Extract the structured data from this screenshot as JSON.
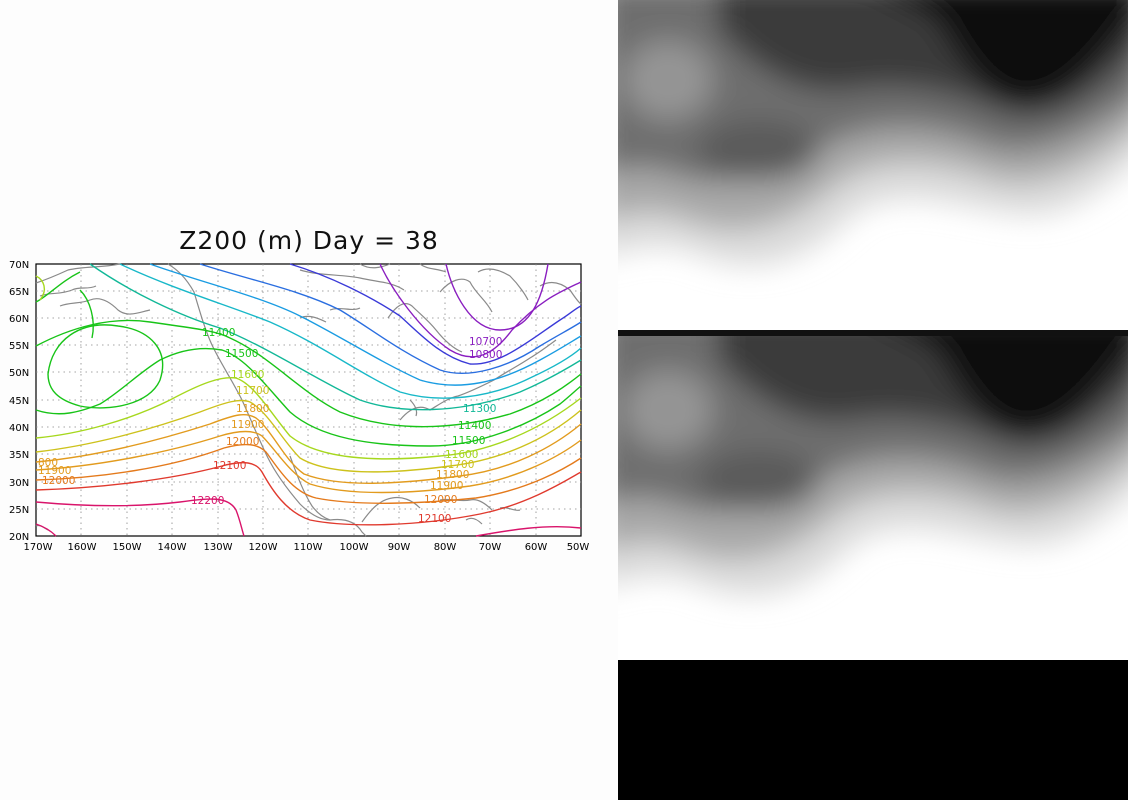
{
  "title": "Z200 (m) Day = 38",
  "map": {
    "lat_labels": [
      "70N",
      "65N",
      "60N",
      "55N",
      "50N",
      "45N",
      "40N",
      "35N",
      "30N",
      "25N",
      "20N"
    ],
    "lon_labels": [
      "170W",
      "160W",
      "150W",
      "140W",
      "130W",
      "120W",
      "110W",
      "100W",
      "90W",
      "80W",
      "70W",
      "60W",
      "50W"
    ],
    "contour_levels": [
      10700,
      10800,
      10900,
      11000,
      11100,
      11200,
      11300,
      11400,
      11500,
      11600,
      11700,
      11800,
      11900,
      12000,
      12100,
      12200
    ],
    "contour_labels": [
      {
        "text": "11400",
        "color": "#18c418"
      },
      {
        "text": "11500",
        "color": "#18c418"
      },
      {
        "text": "11600",
        "color": "#a6d81e"
      },
      {
        "text": "11700",
        "color": "#cdc21c"
      },
      {
        "text": "11800",
        "color": "#e29b1e"
      },
      {
        "text": "11900",
        "color": "#e29b1e"
      },
      {
        "text": "12000",
        "color": "#e47a1c"
      },
      {
        "text": "12100",
        "color": "#e03a2e"
      },
      {
        "text": "12200",
        "color": "#d9146b"
      },
      {
        "text": "10700",
        "color": "#8a1ec0"
      },
      {
        "text": "10800",
        "color": "#8a1ec0"
      },
      {
        "text": "11300",
        "color": "#12b898"
      },
      {
        "text": "11400",
        "color": "#18c418"
      },
      {
        "text": "11500",
        "color": "#18c418"
      },
      {
        "text": "11600",
        "color": "#a6d81e"
      },
      {
        "text": "11700",
        "color": "#cdc21c"
      },
      {
        "text": "11800",
        "color": "#e29b1e"
      },
      {
        "text": "11900",
        "color": "#e29b1e"
      },
      {
        "text": "12000",
        "color": "#e47a1c"
      },
      {
        "text": "12100",
        "color": "#e03a2e"
      },
      {
        "text": "800",
        "color": "#e29b1e"
      },
      {
        "text": "11900",
        "color": "#e29b1e"
      },
      {
        "text": "12000",
        "color": "#e47a1c"
      }
    ]
  }
}
